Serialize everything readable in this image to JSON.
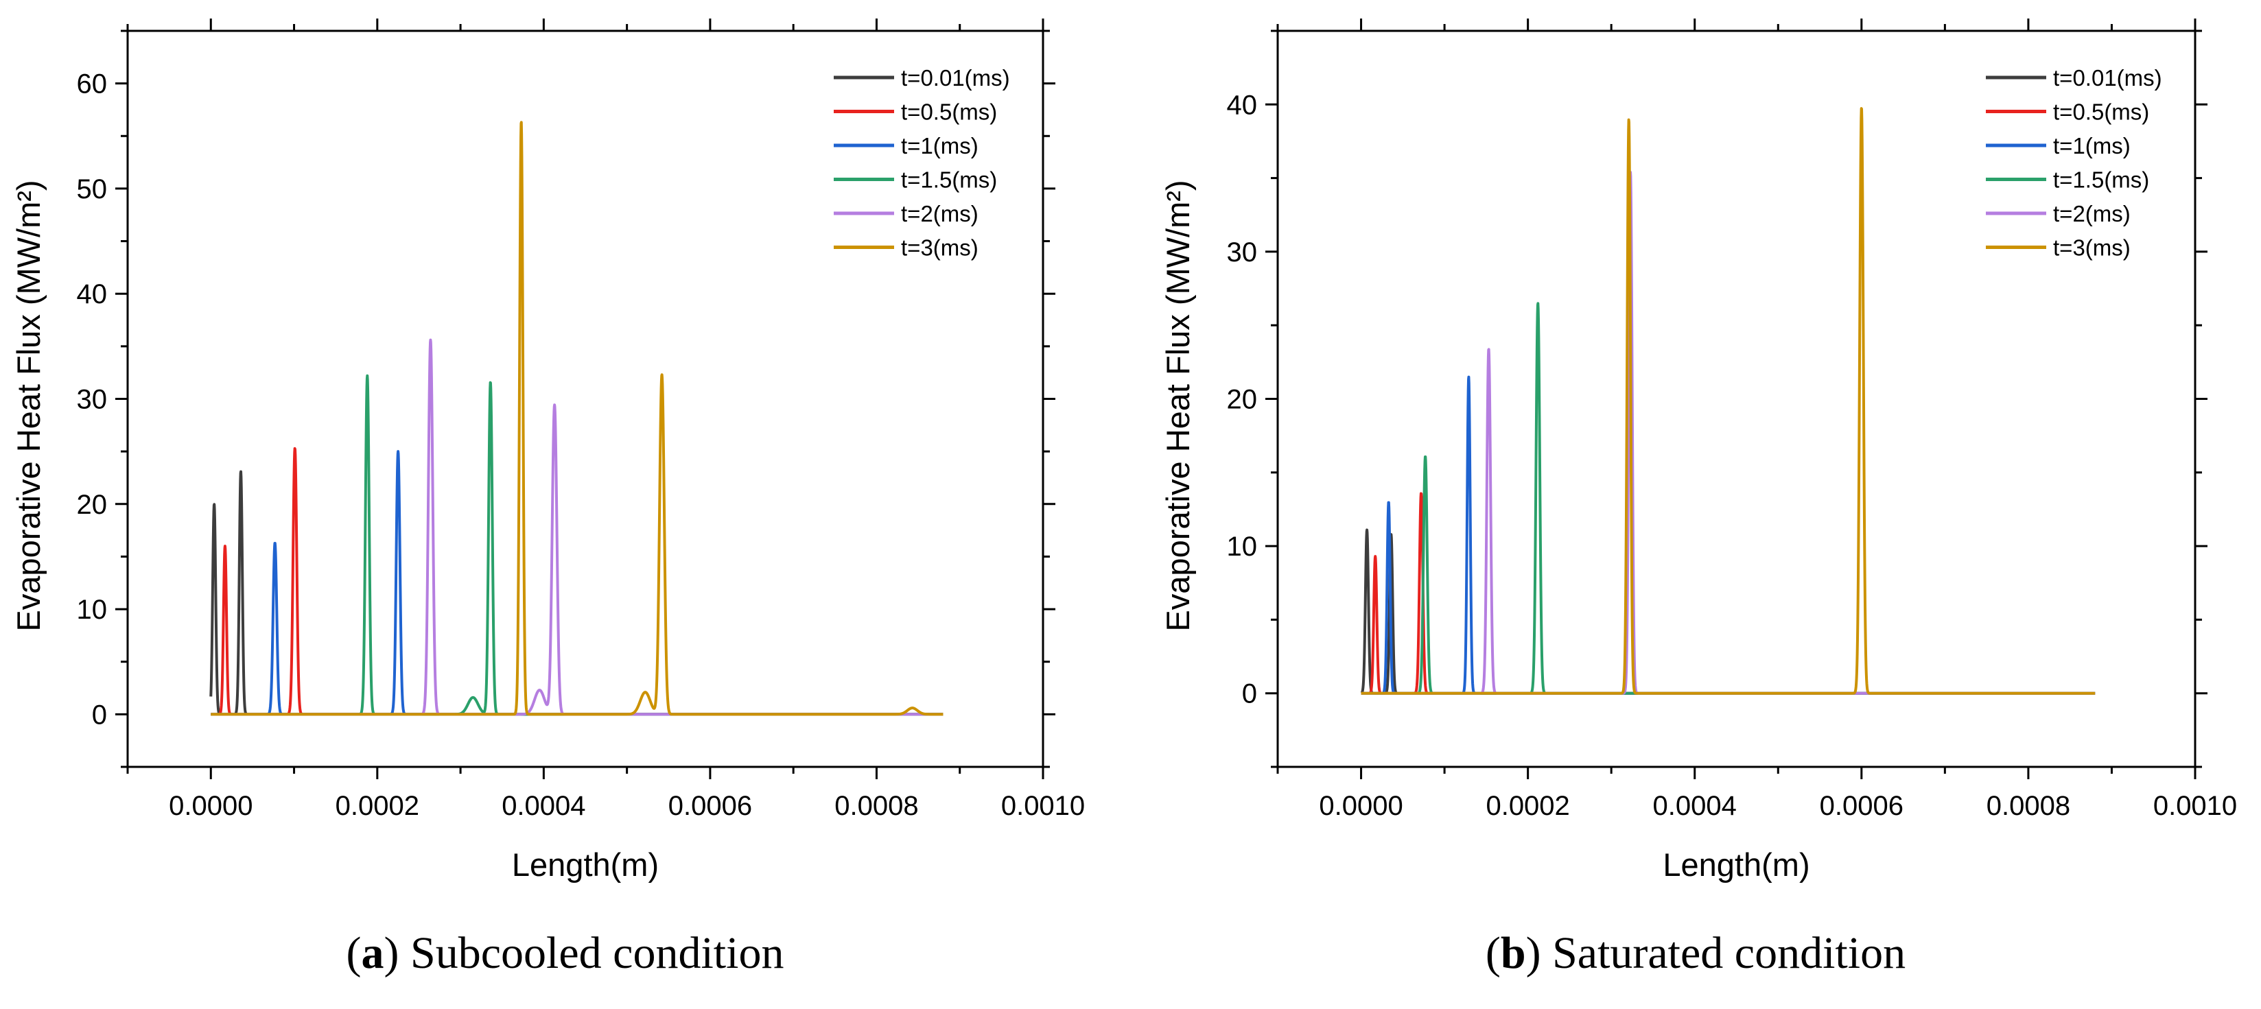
{
  "figure": {
    "captions": [
      {
        "letter": "a",
        "text": "Subcooled condition"
      },
      {
        "letter": "b",
        "text": "Saturated condition"
      }
    ]
  },
  "chart_data": [
    {
      "type": "line",
      "panel": "a",
      "xlabel": "Length(m)",
      "ylabel": "Evaporative Heat Flux (MW/m²)",
      "xlim": [
        -0.0001,
        0.001
      ],
      "ylim": [
        -5,
        65
      ],
      "x_ticks": [
        0.0,
        0.0002,
        0.0004,
        0.0006,
        0.0008,
        0.001
      ],
      "x_tick_labels": [
        "0.0000",
        "0.0002",
        "0.0004",
        "0.0006",
        "0.0008",
        "0.0010"
      ],
      "y_ticks": [
        0,
        10,
        20,
        30,
        40,
        50,
        60
      ],
      "y_tick_labels": [
        "0",
        "10",
        "20",
        "30",
        "40",
        "50",
        "60"
      ],
      "x_range": [
        0.0,
        0.00088
      ],
      "legend_position": "top-right",
      "grid": false,
      "series": [
        {
          "name": "t=0.01(ms)",
          "color": "#3d3d3d",
          "peaks": [
            {
              "x": 4e-06,
              "y": 20.0,
              "w": 1.8e-06
            },
            {
              "x": 3.6e-05,
              "y": 23.1,
              "w": 1.8e-06
            }
          ]
        },
        {
          "name": "t=0.5(ms)",
          "color": "#e8221e",
          "peaks": [
            {
              "x": 1.7e-05,
              "y": 16.0,
              "w": 1.8e-06
            },
            {
              "x": 0.000101,
              "y": 25.3,
              "w": 2.2e-06
            }
          ]
        },
        {
          "name": "t=1(ms)",
          "color": "#1f63d0",
          "peaks": [
            {
              "x": 7.7e-05,
              "y": 16.3,
              "w": 2.2e-06
            },
            {
              "x": 0.000225,
              "y": 25.0,
              "w": 2.2e-06
            }
          ]
        },
        {
          "name": "t=1.5(ms)",
          "color": "#2aa06a",
          "peaks": [
            {
              "x": 0.000188,
              "y": 32.2,
              "w": 2.2e-06
            },
            {
              "x": 0.000315,
              "y": 1.6,
              "w": 6e-06
            },
            {
              "x": 0.000336,
              "y": 31.6,
              "w": 2.2e-06
            }
          ]
        },
        {
          "name": "t=2(ms)",
          "color": "#b57ee0",
          "peaks": [
            {
              "x": 0.000264,
              "y": 35.6,
              "w": 2.6e-06
            },
            {
              "x": 0.000395,
              "y": 2.3,
              "w": 6e-06
            },
            {
              "x": 0.000413,
              "y": 29.4,
              "w": 2.8e-06
            }
          ]
        },
        {
          "name": "t=3(ms)",
          "color": "#cc9200",
          "peaks": [
            {
              "x": 0.000373,
              "y": 56.4,
              "w": 2e-06
            },
            {
              "x": 0.000522,
              "y": 2.1,
              "w": 6e-06
            },
            {
              "x": 0.000542,
              "y": 32.3,
              "w": 2.8e-06
            },
            {
              "x": 0.000843,
              "y": 0.6,
              "w": 6e-06
            }
          ]
        }
      ]
    },
    {
      "type": "line",
      "panel": "b",
      "xlabel": "Length(m)",
      "ylabel": "Evaporative Heat Flux (MW/m²)",
      "xlim": [
        -0.0001,
        0.001
      ],
      "ylim": [
        -5,
        45
      ],
      "x_ticks": [
        0.0,
        0.0002,
        0.0004,
        0.0006,
        0.0008,
        0.001
      ],
      "x_tick_labels": [
        "0.0000",
        "0.0002",
        "0.0004",
        "0.0006",
        "0.0008",
        "0.0010"
      ],
      "y_ticks": [
        0,
        10,
        20,
        30,
        40
      ],
      "y_tick_labels": [
        "0",
        "10",
        "20",
        "30",
        "40"
      ],
      "x_range": [
        0.0,
        0.00088
      ],
      "legend_position": "top-right",
      "grid": false,
      "series": [
        {
          "name": "t=0.01(ms)",
          "color": "#3d3d3d",
          "peaks": [
            {
              "x": 7e-06,
              "y": 11.1,
              "w": 1.8e-06
            },
            {
              "x": 3.6e-05,
              "y": 10.8,
              "w": 1.8e-06
            }
          ]
        },
        {
          "name": "t=0.5(ms)",
          "color": "#e8221e",
          "peaks": [
            {
              "x": 1.7e-05,
              "y": 9.3,
              "w": 1.8e-06
            },
            {
              "x": 7.2e-05,
              "y": 13.6,
              "w": 2e-06
            }
          ]
        },
        {
          "name": "t=1(ms)",
          "color": "#1f63d0",
          "peaks": [
            {
              "x": 3.3e-05,
              "y": 13.0,
              "w": 1.8e-06
            },
            {
              "x": 0.000129,
              "y": 21.5,
              "w": 1.8e-06
            }
          ]
        },
        {
          "name": "t=1.5(ms)",
          "color": "#2aa06a",
          "peaks": [
            {
              "x": 7.7e-05,
              "y": 16.1,
              "w": 2.2e-06
            },
            {
              "x": 0.000212,
              "y": 26.5,
              "w": 2.2e-06
            }
          ]
        },
        {
          "name": "t=2(ms)",
          "color": "#b57ee0",
          "peaks": [
            {
              "x": 0.000153,
              "y": 23.4,
              "w": 2.2e-06
            },
            {
              "x": 0.000323,
              "y": 35.4,
              "w": 2e-06
            }
          ]
        },
        {
          "name": "t=3(ms)",
          "color": "#cc9200",
          "peaks": [
            {
              "x": 0.000321,
              "y": 39.0,
              "w": 2e-06
            },
            {
              "x": 0.0006,
              "y": 39.8,
              "w": 2.2e-06
            }
          ]
        }
      ]
    }
  ]
}
